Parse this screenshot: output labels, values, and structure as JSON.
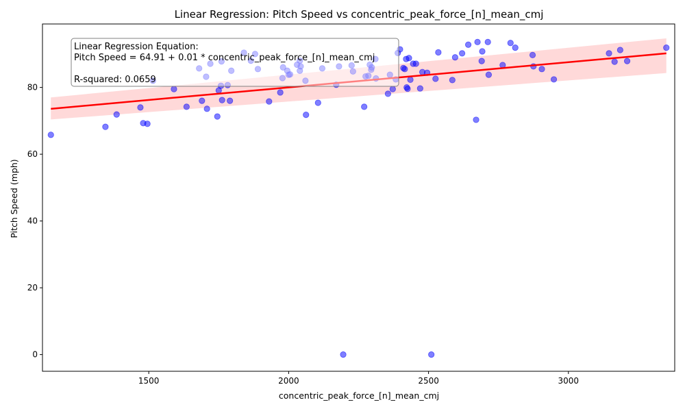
{
  "chart_data": {
    "type": "scatter",
    "title": "Linear Regression: Pitch Speed vs concentric_peak_force_[n]_mean_cmj",
    "xlabel": "concentric_peak_force_[n]_mean_cmj",
    "ylabel": "Pitch Speed (mph)",
    "xlim": [
      1120,
      3380
    ],
    "ylim": [
      -5,
      99
    ],
    "xticks": [
      1500,
      2000,
      2500,
      3000
    ],
    "yticks": [
      0,
      20,
      40,
      60,
      80
    ],
    "grid": false,
    "annotation": {
      "lines": [
        "Linear Regression Equation:",
        "Pitch Speed = 64.91 + 0.01 * concentric_peak_force_[n]_mean_cmj",
        "",
        "R-squared: 0.0659"
      ]
    },
    "regression": {
      "x": [
        1150,
        3350
      ],
      "y": [
        73.6,
        90.2
      ],
      "ci_lower": [
        70.4,
        84.3
      ],
      "ci_upper": [
        77.0,
        94.7
      ],
      "color": "#ff0000"
    },
    "points": {
      "color": "#0000ff",
      "x": [
        1150,
        1345,
        1385,
        1470,
        1480,
        1495,
        1515,
        1590,
        1635,
        1680,
        1690,
        1705,
        1708,
        1720,
        1745,
        1750,
        1758,
        1760,
        1762,
        1782,
        1790,
        1795,
        1840,
        1865,
        1880,
        1890,
        1930,
        1970,
        1978,
        1980,
        1995,
        2000,
        2005,
        2030,
        2040,
        2040,
        2043,
        2060,
        2062,
        2105,
        2120,
        2170,
        2180,
        2195,
        2225,
        2230,
        2270,
        2275,
        2285,
        2290,
        2295,
        2297,
        2310,
        2312,
        2355,
        2362,
        2372,
        2383,
        2390,
        2398,
        2410,
        2415,
        2420,
        2422,
        2425,
        2430,
        2435,
        2445,
        2455,
        2470,
        2478,
        2495,
        2510,
        2525,
        2535,
        2585,
        2595,
        2620,
        2642,
        2670,
        2675,
        2690,
        2692,
        2712,
        2715,
        2765,
        2793,
        2810,
        2872,
        2875,
        2905,
        2948,
        3145,
        3165,
        3185,
        3210,
        3350
      ],
      "y": [
        65.8,
        68.2,
        71.9,
        74.0,
        69.3,
        69.1,
        82.0,
        79.5,
        74.2,
        85.7,
        76.0,
        83.2,
        73.6,
        87.1,
        71.3,
        79.1,
        80.5,
        87.8,
        76.2,
        80.7,
        76.0,
        85.0,
        90.4,
        88.0,
        90.0,
        85.5,
        75.8,
        78.5,
        82.8,
        86.0,
        85.0,
        83.8,
        83.9,
        86.8,
        88.0,
        85.0,
        86.3,
        82.0,
        71.8,
        75.4,
        85.7,
        80.8,
        86.3,
        0,
        86.6,
        84.8,
        74.2,
        83.3,
        83.5,
        86.8,
        85.3,
        86.0,
        88.5,
        82.7,
        78.1,
        83.8,
        79.5,
        82.4,
        90.3,
        91.4,
        85.8,
        85.5,
        88.5,
        80.0,
        79.6,
        88.8,
        82.3,
        87.1,
        87.1,
        79.7,
        84.6,
        84.4,
        0,
        82.6,
        90.5,
        82.2,
        89.0,
        90.2,
        92.8,
        70.3,
        93.6,
        87.9,
        90.8,
        93.6,
        83.8,
        86.7,
        93.3,
        91.9,
        89.7,
        86.3,
        85.5,
        82.4,
        90.2,
        87.7,
        91.2,
        87.9,
        91.9
      ]
    }
  }
}
